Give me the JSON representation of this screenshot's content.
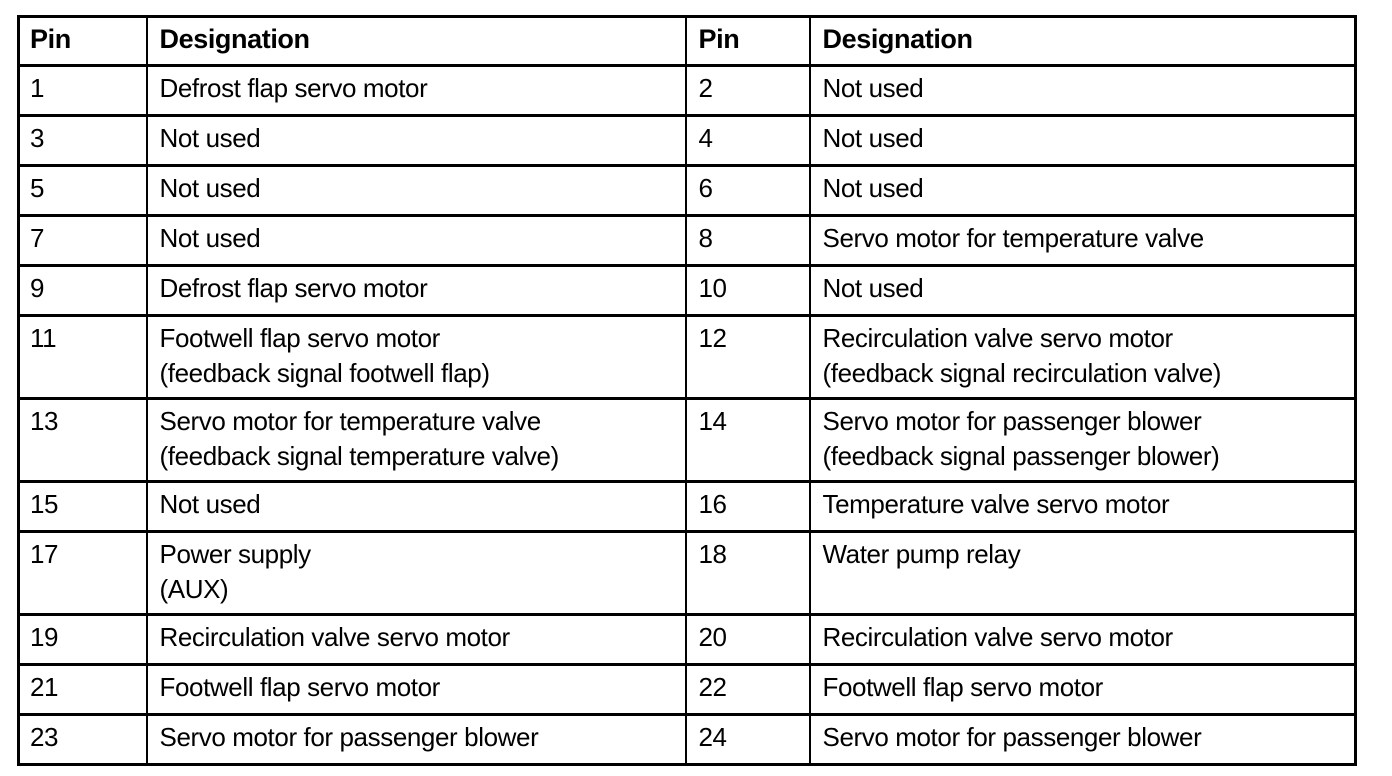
{
  "page": {
    "background_color": "#ffffff",
    "text_color": "#000000",
    "border_color": "#000000"
  },
  "table": {
    "columns": [
      "Pin",
      "Designation",
      "Pin",
      "Designation"
    ],
    "rows": [
      {
        "pin_left": "1",
        "designation_left": [
          "Defrost flap servo motor"
        ],
        "pin_right": "2",
        "designation_right": [
          "Not used"
        ]
      },
      {
        "pin_left": "3",
        "designation_left": [
          "Not used"
        ],
        "pin_right": "4",
        "designation_right": [
          "Not used"
        ]
      },
      {
        "pin_left": "5",
        "designation_left": [
          "Not used"
        ],
        "pin_right": "6",
        "designation_right": [
          "Not used"
        ]
      },
      {
        "pin_left": "7",
        "designation_left": [
          "Not used"
        ],
        "pin_right": "8",
        "designation_right": [
          "Servo motor for temperature valve"
        ]
      },
      {
        "pin_left": "9",
        "designation_left": [
          "Defrost flap servo motor"
        ],
        "pin_right": "10",
        "designation_right": [
          "Not used"
        ]
      },
      {
        "pin_left": "11",
        "designation_left": [
          "Footwell flap servo motor",
          "(feedback signal footwell flap)"
        ],
        "pin_right": "12",
        "designation_right": [
          "Recirculation valve servo motor",
          "(feedback signal recirculation valve)"
        ]
      },
      {
        "pin_left": "13",
        "designation_left": [
          "Servo motor for temperature valve",
          "(feedback signal temperature valve)"
        ],
        "pin_right": "14",
        "designation_right": [
          "Servo motor for passenger blower",
          "(feedback signal passenger blower)"
        ]
      },
      {
        "pin_left": "15",
        "designation_left": [
          "Not used"
        ],
        "pin_right": "16",
        "designation_right": [
          "Temperature valve servo motor"
        ]
      },
      {
        "pin_left": "17",
        "designation_left": [
          "Power supply",
          "(AUX)"
        ],
        "pin_right": "18",
        "designation_right": [
          "Water pump relay"
        ]
      },
      {
        "pin_left": "19",
        "designation_left": [
          "Recirculation valve servo motor"
        ],
        "pin_right": "20",
        "designation_right": [
          "Recirculation valve servo motor"
        ]
      },
      {
        "pin_left": "21",
        "designation_left": [
          "Footwell flap servo motor"
        ],
        "pin_right": "22",
        "designation_right": [
          "Footwell flap servo motor"
        ]
      },
      {
        "pin_left": "23",
        "designation_left": [
          "Servo motor for passenger blower"
        ],
        "pin_right": "24",
        "designation_right": [
          "Servo motor for passenger blower"
        ]
      }
    ]
  }
}
